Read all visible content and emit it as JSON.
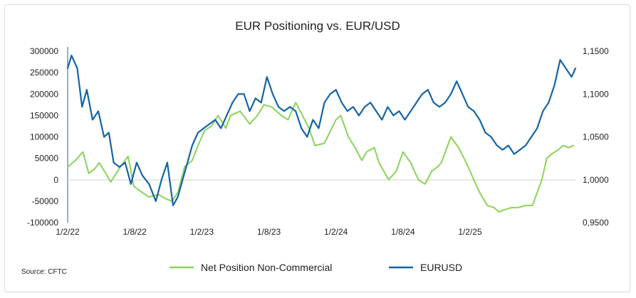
{
  "chart_data": {
    "type": "line",
    "title": "EUR Positioning vs. EUR/USD",
    "source": "Source: CFTC",
    "x_tick_labels": [
      "1/2/22",
      "1/8/22",
      "1/2/23",
      "1/8/23",
      "1/2/24",
      "1/8/24",
      "1/2/25"
    ],
    "y_left": {
      "ylim": [
        -100000,
        300000
      ],
      "tick_labels": [
        "300000",
        "250000",
        "200000",
        "150000",
        "100000",
        "50000",
        "0",
        "-50000",
        "-100000"
      ]
    },
    "y_right": {
      "ylim": [
        0.95,
        1.15
      ],
      "tick_labels": [
        "1,1500",
        "1,1000",
        "1,0500",
        "1,0000",
        "0,9500"
      ]
    },
    "x_unit": "months since Jan 2022",
    "series": [
      {
        "name": "Net Position Non-Commercial",
        "axis": "left",
        "color": "#8bd35a",
        "x": [
          0,
          0.8,
          1.6,
          2.2,
          2.8,
          3.3,
          4.5,
          5.5,
          6.3,
          6.9,
          7.8,
          8.5,
          9.5,
          10.3,
          10.9,
          11.5,
          12.2,
          13,
          13.6,
          14.3,
          15,
          15.7,
          16.5,
          17,
          18,
          19,
          19.8,
          20.5,
          21.3,
          22.3,
          23,
          23.8,
          24.4,
          25.2,
          25.8,
          26.8,
          28,
          28.5,
          29.3,
          30,
          30.7,
          31.2,
          32,
          32.5,
          33.5,
          34.3,
          35,
          35.8,
          36.6,
          37.3,
          38,
          38.6,
          39,
          40,
          40.8,
          41.6,
          42.5,
          43,
          43.8,
          44.5,
          45,
          45.6,
          46.3,
          47,
          47.8,
          48.5,
          49.5,
          50,
          50.5,
          51.2,
          51.7,
          52.3,
          52.8
        ],
        "values": [
          30000,
          45000,
          65000,
          15000,
          25000,
          40000,
          -5000,
          30000,
          55000,
          -15000,
          -30000,
          -40000,
          -35000,
          -45000,
          -50000,
          -30000,
          30000,
          45000,
          80000,
          115000,
          125000,
          150000,
          120000,
          150000,
          160000,
          130000,
          150000,
          175000,
          170000,
          150000,
          140000,
          180000,
          155000,
          120000,
          80000,
          85000,
          140000,
          150000,
          100000,
          75000,
          45000,
          65000,
          75000,
          40000,
          0,
          20000,
          65000,
          40000,
          0,
          -10000,
          20000,
          30000,
          40000,
          100000,
          75000,
          40000,
          -5000,
          -30000,
          -60000,
          -65000,
          -75000,
          -70000,
          -65000,
          -65000,
          -60000,
          -60000,
          0,
          50000,
          60000,
          70000,
          80000,
          75000,
          80000
        ]
      },
      {
        "name": "EURUSD",
        "axis": "right",
        "color": "#1464a5",
        "x": [
          0,
          0.4,
          1,
          1.5,
          2,
          2.6,
          3.2,
          3.8,
          4.3,
          4.8,
          5.4,
          6,
          6.6,
          7.2,
          7.8,
          8.5,
          9.2,
          9.8,
          10.4,
          11,
          11.5,
          12,
          12.5,
          13,
          13.6,
          14.2,
          14.8,
          15.4,
          16,
          16.6,
          17.2,
          17.8,
          18.4,
          19,
          19.6,
          20.2,
          20.8,
          21.4,
          22,
          22.6,
          23.2,
          23.8,
          24.4,
          25,
          25.6,
          26.2,
          26.8,
          27.4,
          28,
          28.6,
          29.2,
          29.8,
          30.4,
          31,
          31.6,
          32.2,
          32.8,
          33.4,
          34,
          34.6,
          35.2,
          35.8,
          36.4,
          37,
          37.6,
          38.2,
          38.8,
          39.4,
          40,
          40.6,
          41.2,
          41.8,
          42.4,
          43,
          43.6,
          44.2,
          44.8,
          45.4,
          46,
          46.6,
          47.2,
          47.8,
          48.4,
          49,
          49.6,
          50.2,
          50.8,
          51.4,
          52,
          52.6,
          53
        ],
        "values": [
          1.13,
          1.145,
          1.13,
          1.085,
          1.105,
          1.07,
          1.08,
          1.05,
          1.055,
          1.02,
          1.015,
          1.02,
          0.995,
          1.02,
          1.005,
          0.995,
          0.975,
          1.0,
          1.02,
          0.97,
          0.98,
          1.0,
          1.02,
          1.04,
          1.055,
          1.06,
          1.065,
          1.07,
          1.06,
          1.075,
          1.09,
          1.1,
          1.1,
          1.08,
          1.095,
          1.09,
          1.12,
          1.1,
          1.085,
          1.08,
          1.085,
          1.08,
          1.06,
          1.05,
          1.07,
          1.06,
          1.09,
          1.1,
          1.105,
          1.09,
          1.08,
          1.085,
          1.075,
          1.085,
          1.09,
          1.08,
          1.07,
          1.085,
          1.075,
          1.08,
          1.07,
          1.08,
          1.09,
          1.1,
          1.105,
          1.09,
          1.085,
          1.09,
          1.1,
          1.115,
          1.1,
          1.085,
          1.08,
          1.07,
          1.055,
          1.05,
          1.04,
          1.035,
          1.04,
          1.03,
          1.035,
          1.04,
          1.05,
          1.06,
          1.08,
          1.09,
          1.11,
          1.14,
          1.13,
          1.12,
          1.13
        ]
      }
    ],
    "legend": {
      "placement": "bottom"
    },
    "grid": false
  },
  "colors": {
    "green": "#8bd35a",
    "blue": "#1464a5",
    "axis": "#7f7f7f"
  }
}
